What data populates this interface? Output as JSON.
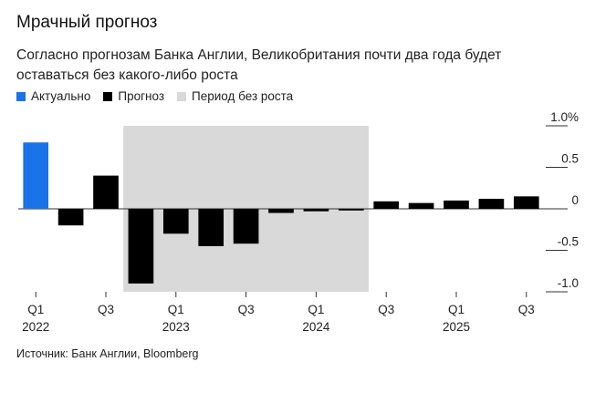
{
  "title": "Мрачный прогноз",
  "subtitle": "Согласно прогнозам Банка Англии, Великобритания почти два года будет оставаться без какого-либо роста",
  "source": "Источник: Банк Англии, Bloomberg",
  "legend": [
    {
      "label": "Актуально",
      "color": "#1a73e8"
    },
    {
      "label": "Прогноз",
      "color": "#000000"
    },
    {
      "label": "Период без роста",
      "color": "#d9d9d9"
    }
  ],
  "chart_data": {
    "type": "bar",
    "categories": [
      "Q1 2022",
      "Q2 2022",
      "Q3 2022",
      "Q4 2022",
      "Q1 2023",
      "Q2 2023",
      "Q3 2023",
      "Q4 2023",
      "Q1 2024",
      "Q2 2024",
      "Q3 2024",
      "Q4 2024",
      "Q1 2025",
      "Q2 2025",
      "Q3 2025"
    ],
    "values": [
      0.8,
      -0.2,
      0.4,
      -0.9,
      -0.3,
      -0.45,
      -0.42,
      -0.05,
      -0.03,
      -0.02,
      0.09,
      0.07,
      0.1,
      0.12,
      0.15
    ],
    "kinds": [
      "actual",
      "forecast",
      "forecast",
      "forecast",
      "forecast",
      "forecast",
      "forecast",
      "forecast",
      "forecast",
      "forecast",
      "forecast",
      "forecast",
      "forecast",
      "forecast",
      "forecast"
    ],
    "no_growth_period": [
      "Q4 2022",
      "Q2 2024"
    ],
    "ylim": [
      -1.0,
      1.0
    ],
    "yticks": [
      {
        "value": 1.0,
        "label": "1.0%"
      },
      {
        "value": 0.5,
        "label": "0.5"
      },
      {
        "value": 0,
        "label": "0"
      },
      {
        "value": -0.5,
        "label": "-0.5"
      },
      {
        "value": -1.0,
        "label": "-1.0"
      }
    ],
    "xticks": [
      {
        "index": 0,
        "label": "Q1",
        "year": "2022"
      },
      {
        "index": 2,
        "label": "Q3",
        "year": ""
      },
      {
        "index": 4,
        "label": "Q1",
        "year": "2023"
      },
      {
        "index": 6,
        "label": "Q3",
        "year": ""
      },
      {
        "index": 8,
        "label": "Q1",
        "year": "2024"
      },
      {
        "index": 10,
        "label": "Q3",
        "year": ""
      },
      {
        "index": 12,
        "label": "Q1",
        "year": "2025"
      },
      {
        "index": 14,
        "label": "Q3",
        "year": ""
      }
    ],
    "colors": {
      "actual": "#1a73e8",
      "forecast": "#000000",
      "shade": "#d9d9d9"
    }
  }
}
